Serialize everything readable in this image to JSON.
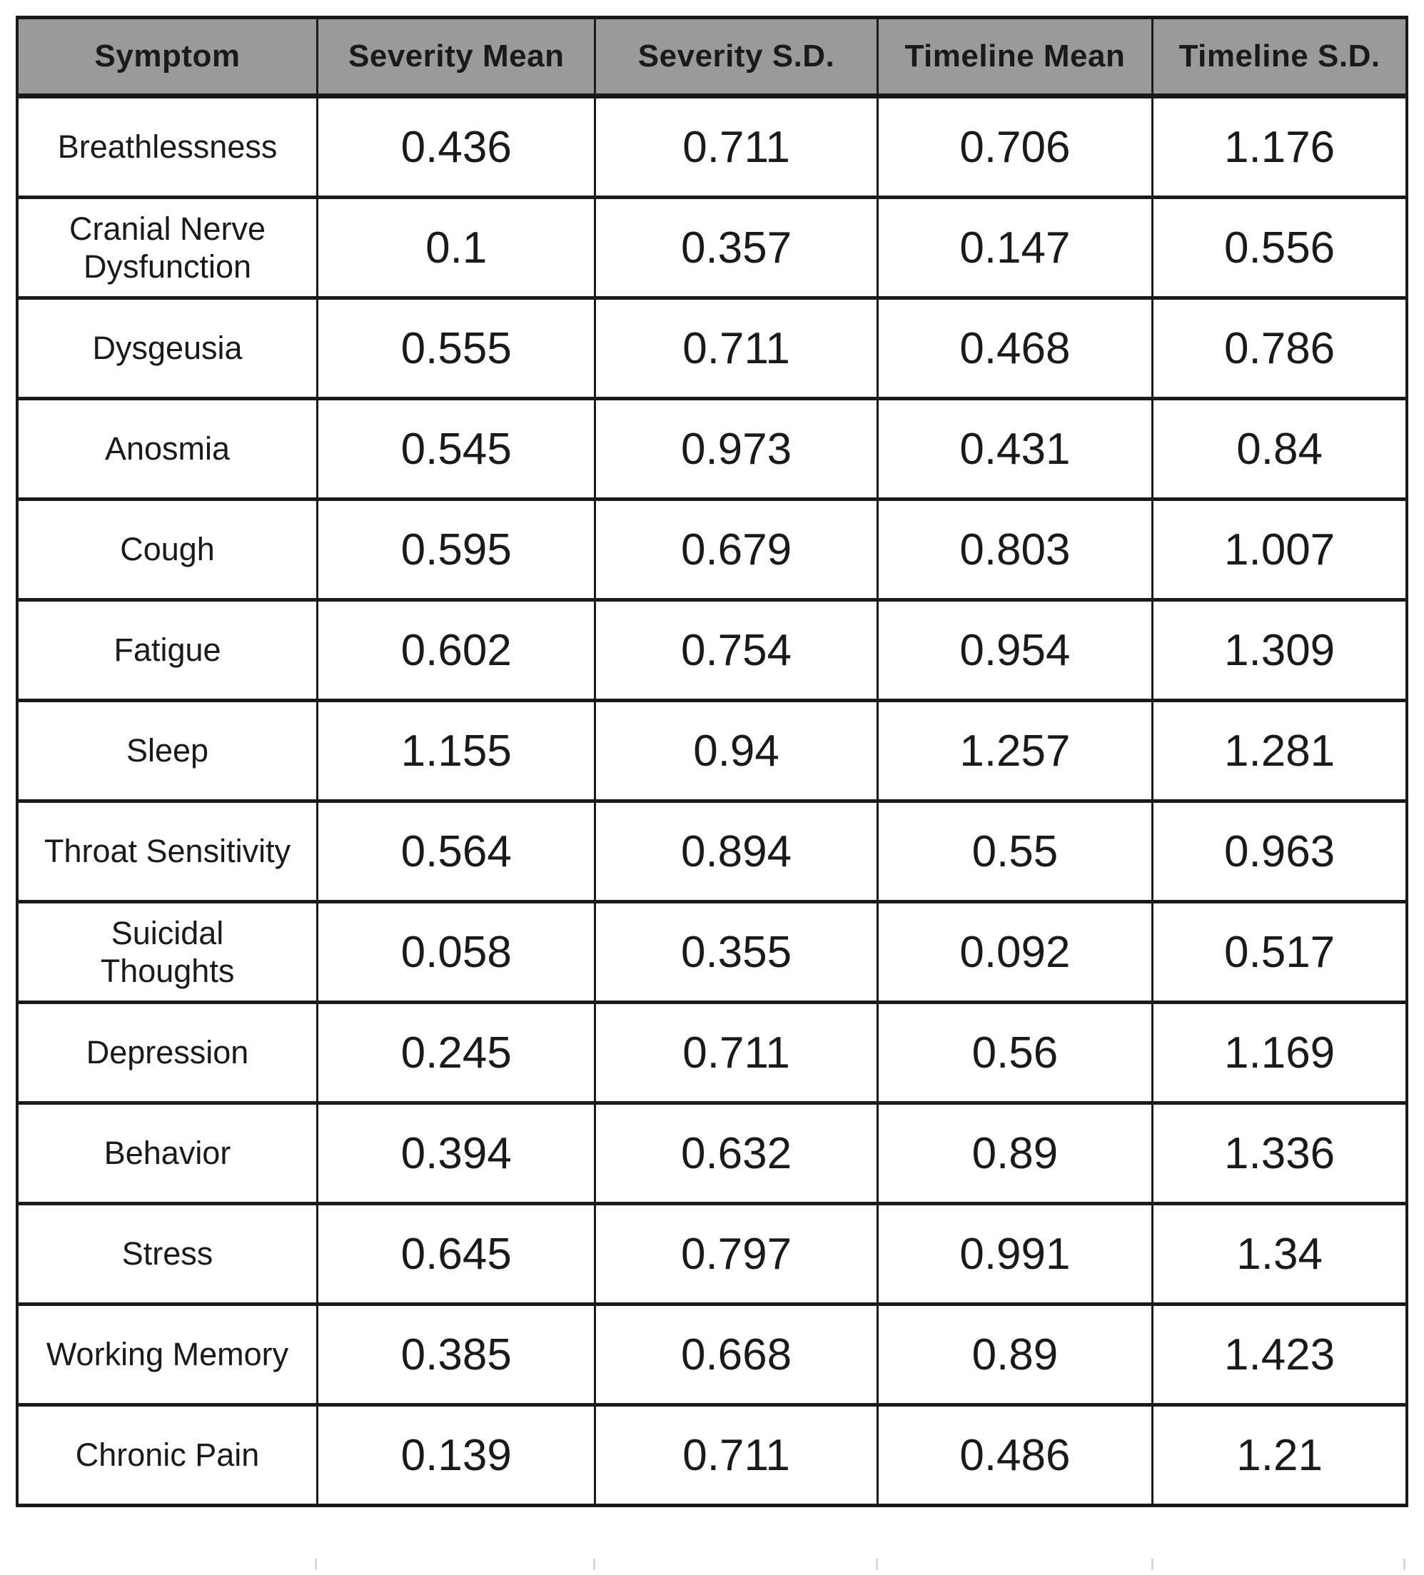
{
  "chart_data": {
    "type": "table",
    "columns": [
      "Symptom",
      "Severity Mean",
      "Severity S.D.",
      "Timeline Mean",
      "Timeline S.D."
    ],
    "rows": [
      [
        "Breathlessness",
        "0.436",
        "0.711",
        "0.706",
        "1.176"
      ],
      [
        "Cranial Nerve Dysfunction",
        "0.1",
        "0.357",
        "0.147",
        "0.556"
      ],
      [
        "Dysgeusia",
        "0.555",
        "0.711",
        "0.468",
        "0.786"
      ],
      [
        "Anosmia",
        "0.545",
        "0.973",
        "0.431",
        "0.84"
      ],
      [
        "Cough",
        "0.595",
        "0.679",
        "0.803",
        "1.007"
      ],
      [
        "Fatigue",
        "0.602",
        "0.754",
        "0.954",
        "1.309"
      ],
      [
        "Sleep",
        "1.155",
        "0.94",
        "1.257",
        "1.281"
      ],
      [
        "Throat Sensitivity",
        "0.564",
        "0.894",
        "0.55",
        "0.963"
      ],
      [
        "Suicidal Thoughts",
        "0.058",
        "0.355",
        "0.092",
        "0.517"
      ],
      [
        "Depression",
        "0.245",
        "0.711",
        "0.56",
        "1.169"
      ],
      [
        "Behavior",
        "0.394",
        "0.632",
        "0.89",
        "1.336"
      ],
      [
        "Stress",
        "0.645",
        "0.797",
        "0.991",
        "1.34"
      ],
      [
        "Working Memory",
        "0.385",
        "0.668",
        "0.89",
        "1.423"
      ],
      [
        "Chronic Pain",
        "0.139",
        "0.711",
        "0.486",
        "1.21"
      ]
    ],
    "layout": {
      "header_background": "#9a9a9a",
      "border_color": "#1a1a1a",
      "text_color": "#1a1a1a",
      "grid": "on"
    }
  }
}
